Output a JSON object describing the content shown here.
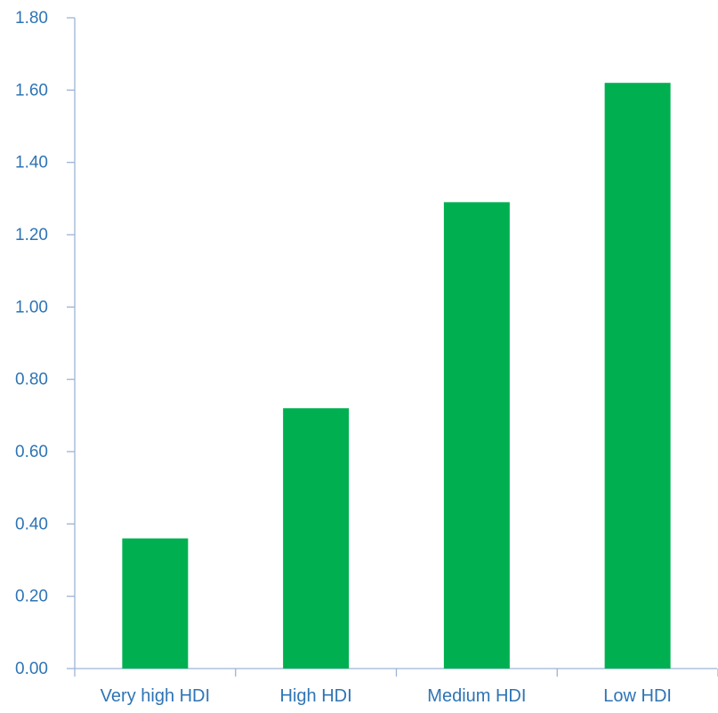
{
  "chart_data": {
    "type": "bar",
    "categories": [
      "Very high HDI",
      "High HDI",
      "Medium HDI",
      "Low HDI"
    ],
    "values": [
      0.36,
      0.72,
      1.29,
      1.62
    ],
    "ylim": [
      0,
      1.8
    ],
    "yticks": [
      "0.00",
      "0.20",
      "0.40",
      "0.60",
      "0.80",
      "1.00",
      "1.20",
      "1.40",
      "1.60",
      "1.80"
    ],
    "ytick_values": [
      0,
      0.2,
      0.4,
      0.6,
      0.8,
      1.0,
      1.2,
      1.4,
      1.6,
      1.8
    ],
    "title": "",
    "xlabel": "",
    "ylabel": "",
    "grid": false,
    "legend": "none",
    "colors": {
      "bar": "#00B050",
      "text": "#2E74B5",
      "axis": "#9DB3D6"
    }
  }
}
